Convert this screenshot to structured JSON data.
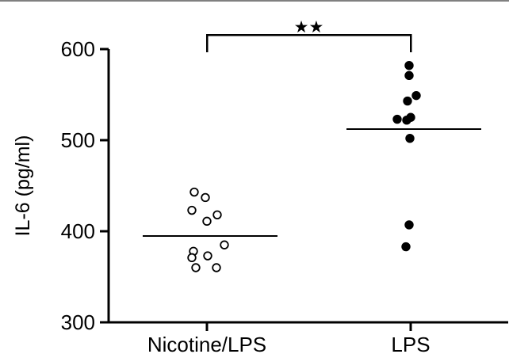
{
  "chart_data": {
    "type": "scatter",
    "title": "",
    "xlabel": "",
    "ylabel": "IL-6 (pg/ml)",
    "ylim": [
      300,
      600
    ],
    "yticks": [
      300,
      400,
      500,
      600
    ],
    "categories": [
      "Nicotine/LPS",
      "LPS"
    ],
    "grid": false,
    "legend": "none",
    "series": [
      {
        "category": "Nicotine/LPS",
        "marker": "open-circle",
        "values": [
          443,
          437,
          423,
          418,
          411,
          385,
          378,
          371,
          373,
          360,
          360
        ],
        "mean": 395
      },
      {
        "category": "LPS",
        "marker": "filled-circle",
        "values": [
          582,
          571,
          549,
          543,
          525,
          523,
          522,
          502,
          407,
          383
        ],
        "mean": 512
      }
    ],
    "significance": {
      "between": [
        "Nicotine/LPS",
        "LPS"
      ],
      "label": "★★"
    }
  }
}
